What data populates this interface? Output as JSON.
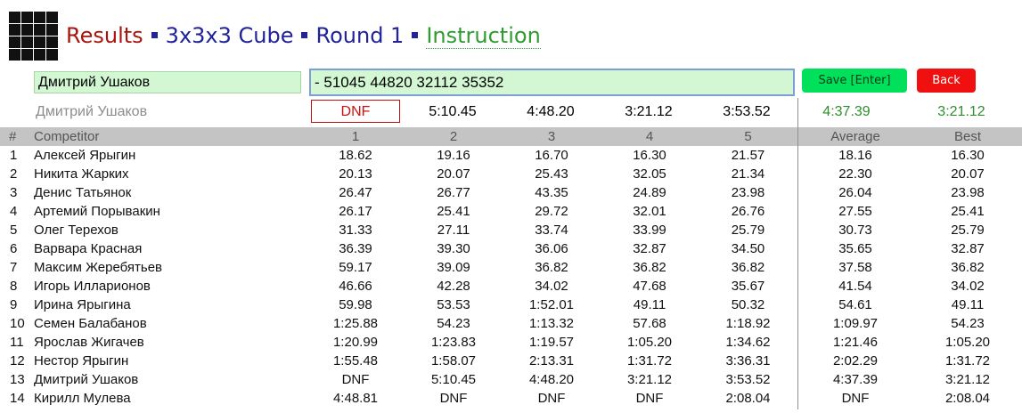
{
  "header": {
    "results": "Results",
    "event": "3x3x3 Cube",
    "round": "Round 1",
    "instruction": "Instruction"
  },
  "form": {
    "name_value": "Дмитрий Ушаков",
    "times_value": "- 51045 44820 32112 35352",
    "save_label": "Save [Enter]",
    "back_label": "Back"
  },
  "preview": {
    "name": "Дмитрий Ушаков",
    "attempts": [
      "DNF",
      "5:10.45",
      "4:48.20",
      "3:21.12",
      "3:53.52"
    ],
    "average": "4:37.39",
    "best": "3:21.12"
  },
  "table": {
    "headers": [
      "#",
      "Competitor",
      "1",
      "2",
      "3",
      "4",
      "5",
      "Average",
      "Best"
    ],
    "rows": [
      [
        "1",
        "Алексей Ярыгин",
        "18.62",
        "19.16",
        "16.70",
        "16.30",
        "21.57",
        "18.16",
        "16.30"
      ],
      [
        "2",
        "Никита Жарких",
        "20.13",
        "20.07",
        "25.43",
        "32.05",
        "21.34",
        "22.30",
        "20.07"
      ],
      [
        "3",
        "Денис Татьянок",
        "26.47",
        "26.77",
        "43.35",
        "24.89",
        "23.98",
        "26.04",
        "23.98"
      ],
      [
        "4",
        "Артемий Порывакин",
        "26.17",
        "25.41",
        "29.72",
        "32.01",
        "26.76",
        "27.55",
        "25.41"
      ],
      [
        "5",
        "Олег Терехов",
        "31.33",
        "27.11",
        "33.74",
        "33.99",
        "25.79",
        "30.73",
        "25.79"
      ],
      [
        "6",
        "Варвара Красная",
        "36.39",
        "39.30",
        "36.06",
        "32.87",
        "34.50",
        "35.65",
        "32.87"
      ],
      [
        "7",
        "Максим Жеребятьев",
        "59.17",
        "39.09",
        "36.82",
        "36.82",
        "36.82",
        "37.58",
        "36.82"
      ],
      [
        "8",
        "Игорь Илларионов",
        "46.66",
        "42.28",
        "34.02",
        "47.68",
        "35.67",
        "41.54",
        "34.02"
      ],
      [
        "9",
        "Ирина Ярыгина",
        "59.98",
        "53.53",
        "1:52.01",
        "49.11",
        "50.32",
        "54.61",
        "49.11"
      ],
      [
        "10",
        "Семен Балабанов",
        "1:25.88",
        "54.23",
        "1:13.32",
        "57.68",
        "1:18.92",
        "1:09.97",
        "54.23"
      ],
      [
        "11",
        "Ярослав Жигачев",
        "1:20.99",
        "1:23.83",
        "1:19.57",
        "1:05.20",
        "1:34.62",
        "1:21.46",
        "1:05.20"
      ],
      [
        "12",
        "Нестор Ярыгин",
        "1:55.48",
        "1:58.07",
        "2:13.31",
        "1:31.72",
        "3:36.31",
        "2:02.29",
        "1:31.72"
      ],
      [
        "13",
        "Дмитрий Ушаков",
        "DNF",
        "5:10.45",
        "4:48.20",
        "3:21.12",
        "3:53.52",
        "4:37.39",
        "3:21.12"
      ],
      [
        "14",
        "Кирилл Мулева",
        "4:48.81",
        "DNF",
        "DNF",
        "DNF",
        "2:08.04",
        "DNF",
        "2:08.04"
      ]
    ]
  },
  "colors": {
    "results": "#a8140f",
    "navy": "#22229a",
    "instruction_green": "#2e9c2e",
    "input_bg": "#d3f7d3",
    "save_bg": "#00e05a",
    "back_bg": "#f01010",
    "header_bg": "#c4c4c4"
  }
}
